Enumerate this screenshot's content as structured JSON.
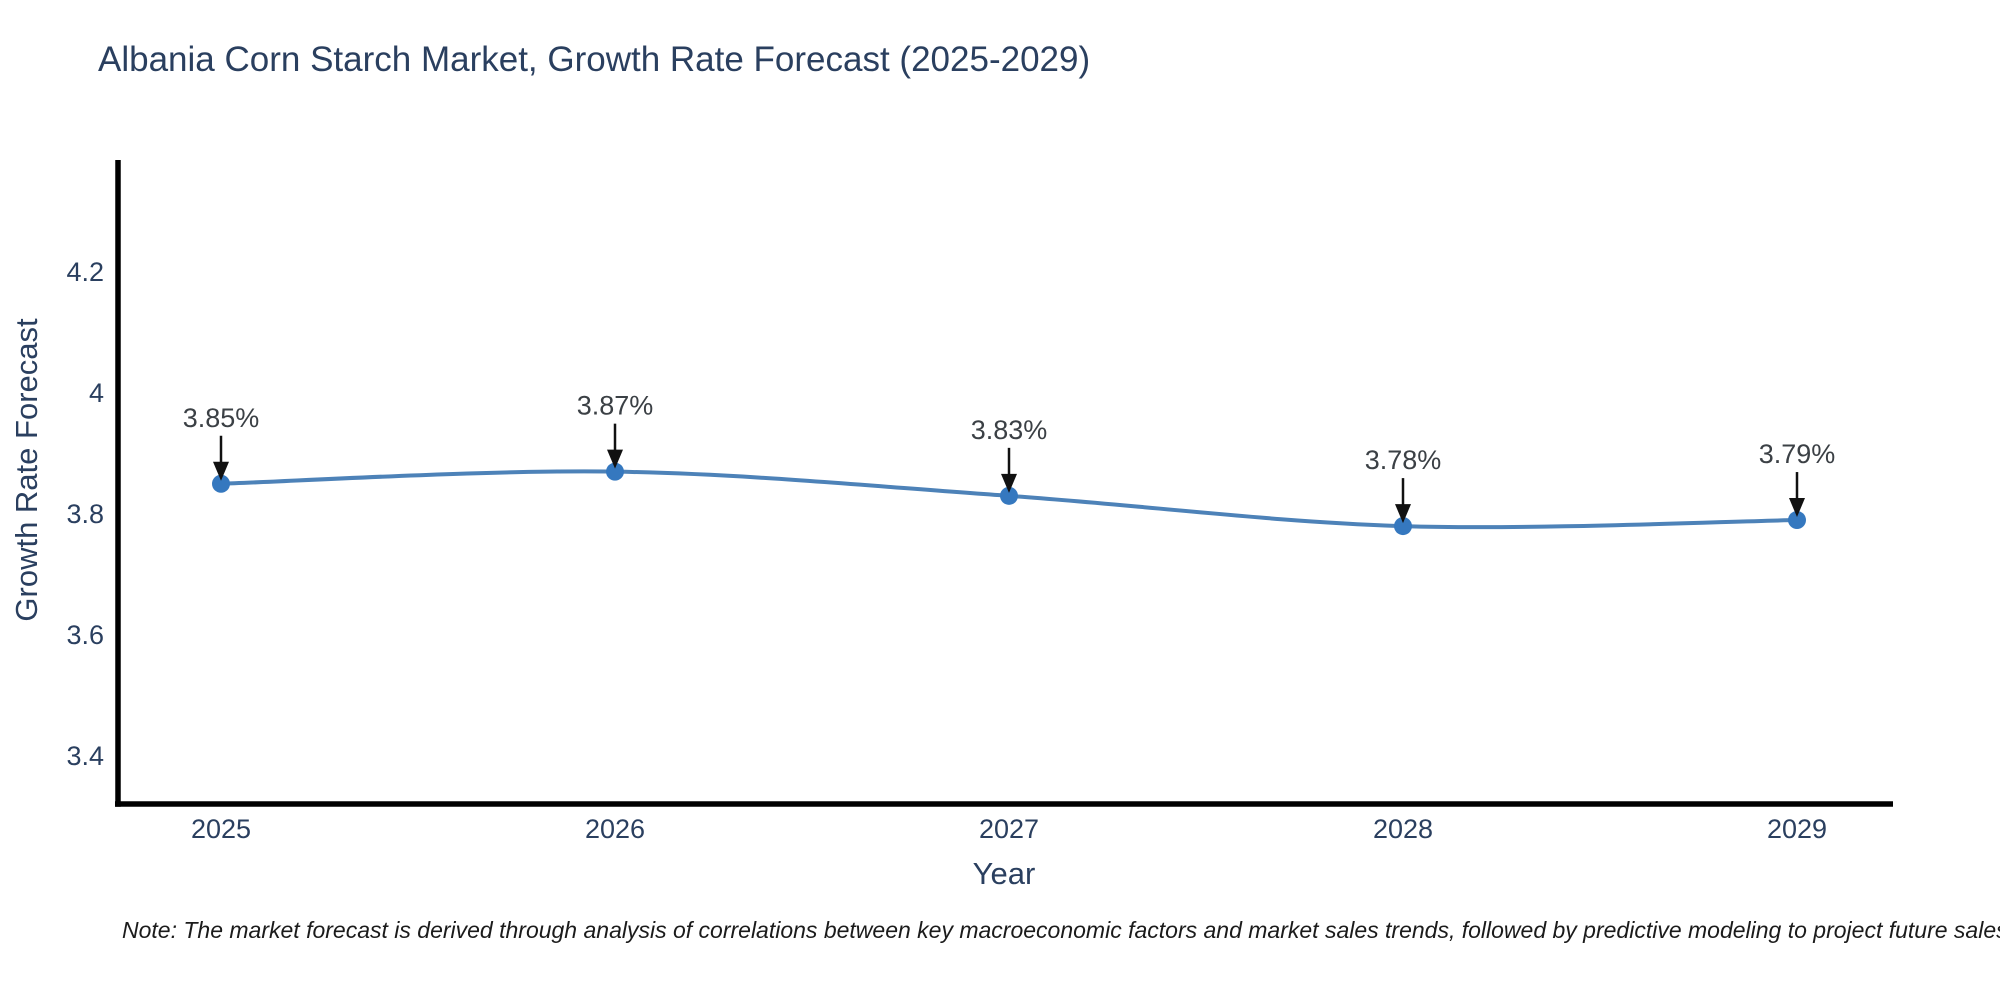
{
  "page": {
    "background": "#ffffff"
  },
  "chart_data": {
    "type": "line",
    "title": "Albania Corn Starch Market, Growth Rate Forecast (2025-2029)",
    "xlabel": "Year",
    "ylabel": "Growth Rate Forecast",
    "categories": [
      "2025",
      "2026",
      "2027",
      "2028",
      "2029"
    ],
    "series": [
      {
        "name": "Growth Rate Forecast",
        "values": [
          3.85,
          3.87,
          3.83,
          3.78,
          3.79
        ]
      }
    ],
    "point_labels": [
      "3.85%",
      "3.87%",
      "3.83%",
      "3.78%",
      "3.79%"
    ],
    "ytick_values": [
      3.4,
      3.6,
      3.8,
      4,
      4.2
    ],
    "ytick_labels": [
      "3.4",
      "3.6",
      "3.8",
      "4",
      "4.2"
    ],
    "ylim": [
      3.32,
      4.38
    ],
    "grid": false,
    "legend": false,
    "line_shape": "spline",
    "annotation_arrows": "down-arrow-to-each-point",
    "colors": {
      "line": "#4d82b8",
      "marker": "#3578bf",
      "axis": "#000000",
      "arrow": "#111111",
      "axis_text": "#2a3f5f",
      "annotation_text": "#3b4045",
      "title_text": "#2a3f5f",
      "note_text": "#1b1b1b"
    }
  },
  "note": "Note: The market forecast is derived through analysis of correlations between key macroeconomic factors and market sales trends, followed by predictive modeling to project future sales"
}
